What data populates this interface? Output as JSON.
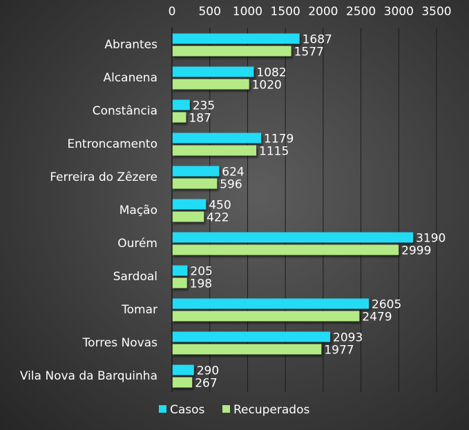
{
  "chart_data": {
    "type": "bar",
    "orientation": "horizontal",
    "categories": [
      "Abrantes",
      "Alcanena",
      "Constância",
      "Entroncamento",
      "Ferreira do Zêzere",
      "Mação",
      "Ourém",
      "Sardoal",
      "Tomar",
      "Torres Novas",
      "Vila Nova da Barquinha"
    ],
    "series": [
      {
        "name": "Casos",
        "color": "#21dcf6",
        "values": [
          1687,
          1082,
          235,
          1179,
          624,
          450,
          3190,
          205,
          2605,
          2093,
          290
        ]
      },
      {
        "name": "Recuperados",
        "color": "#b3ea85",
        "values": [
          1577,
          1020,
          187,
          1115,
          596,
          422,
          2999,
          198,
          2479,
          1977,
          267
        ]
      }
    ],
    "xlim": [
      0,
      3500
    ],
    "xticks": [
      0,
      500,
      1000,
      1500,
      2000,
      2500,
      3000,
      3500
    ],
    "axis_position": "top",
    "grid": true,
    "data_labels": true,
    "legend": "bottom",
    "title": "",
    "xlabel": "",
    "ylabel": ""
  }
}
